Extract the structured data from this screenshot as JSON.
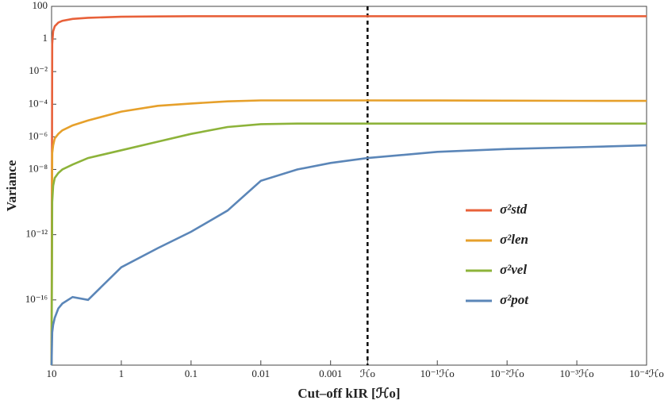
{
  "chart_data": {
    "type": "line",
    "xlabel": "Cut–off kIR [ℋo]",
    "ylabel": "Variance",
    "xscale": "log",
    "yscale": "log",
    "grid": false,
    "legend": "center right",
    "xlim": [
      10,
      2.95e-08
    ],
    "xticks": [
      10,
      1,
      0.1,
      0.01,
      0.001,
      {
        "value": 0.000295,
        "label": "ℋo"
      },
      {
        "value": 2.95e-05,
        "label": "10⁻¹ℋo"
      },
      {
        "value": 2.95e-06,
        "label": "10⁻²ℋo"
      },
      {
        "value": 2.95e-07,
        "label": "10⁻³ℋo"
      },
      {
        "value": 2.95e-08,
        "label": "10⁻⁴ℋo"
      }
    ],
    "ylim": [
      1e-20,
      100
    ],
    "yticks": [
      100,
      1,
      {
        "value": 0.01,
        "label": "10⁻²"
      },
      {
        "value": 0.0001,
        "label": "10⁻⁴"
      },
      {
        "value": 1e-06,
        "label": "10⁻⁶"
      },
      {
        "value": 1e-08,
        "label": "10⁻⁸"
      },
      {
        "value": 1e-12,
        "label": "10⁻¹²"
      },
      {
        "value": 1e-16,
        "label": "10⁻¹⁶"
      }
    ],
    "x": [
      10,
      9.8,
      9.5,
      9,
      8,
      7,
      5,
      3,
      1,
      0.3,
      0.1,
      0.03,
      0.01,
      0.003,
      0.001,
      0.000295,
      2.95e-05,
      2.95e-06,
      2.95e-07,
      2.95e-08
    ],
    "series": [
      {
        "name": "σ²std",
        "color": "#e8613a",
        "values": [
          1e-20,
          0.5,
          3,
          6,
          10,
          13,
          17,
          20,
          23,
          24,
          25,
          25,
          25,
          25,
          25,
          25,
          25,
          25,
          25,
          25
        ]
      },
      {
        "name": "σ²len",
        "color": "#e6a02b",
        "values": [
          1e-20,
          1e-07,
          3e-07,
          8e-07,
          1.5e-06,
          2.5e-06,
          5e-06,
          1e-05,
          3.5e-05,
          8e-05,
          0.00011,
          0.00015,
          0.00017,
          0.00017,
          0.00017,
          0.00017,
          0.000168,
          0.000165,
          0.000162,
          0.00016
        ]
      },
      {
        "name": "σ²vel",
        "color": "#8db33a",
        "values": [
          1e-20,
          1e-10,
          1e-09,
          3e-09,
          6e-09,
          1e-08,
          2e-08,
          5e-08,
          1.5e-07,
          5e-07,
          1.5e-06,
          4e-06,
          6e-06,
          6.5e-06,
          6.5e-06,
          6.5e-06,
          6.5e-06,
          6.5e-06,
          6.5e-06,
          6.5e-06
        ]
      },
      {
        "name": "σ²pot",
        "color": "#5b86b8",
        "values": [
          1e-20,
          1e-18,
          3e-18,
          8e-18,
          3e-17,
          6e-17,
          1.5e-16,
          1e-16,
          1e-14,
          1.5e-13,
          1.5e-12,
          3e-11,
          2e-09,
          1e-08,
          2.5e-08,
          5e-08,
          1.2e-07,
          1.8e-07,
          2.3e-07,
          3e-07
        ]
      }
    ]
  }
}
